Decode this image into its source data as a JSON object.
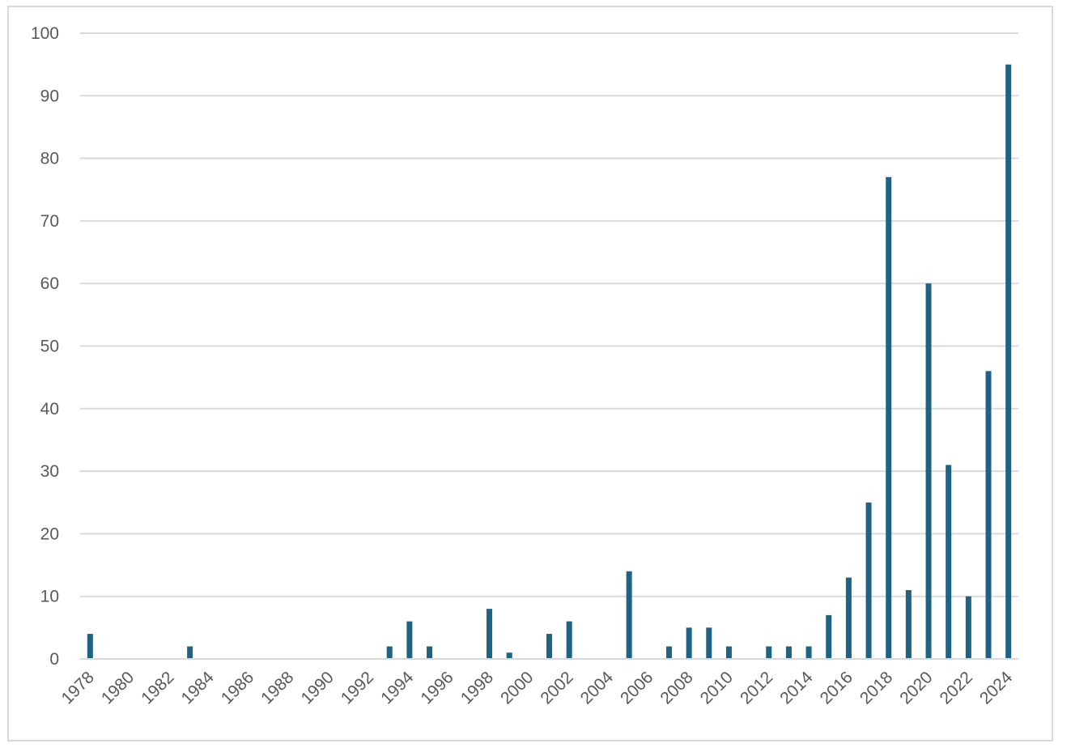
{
  "chart_data": {
    "type": "bar",
    "title": "",
    "xlabel": "",
    "ylabel": "",
    "ylim": [
      0,
      100
    ],
    "yticks": [
      0,
      10,
      20,
      30,
      40,
      50,
      60,
      70,
      80,
      90,
      100
    ],
    "grid": true,
    "legend": "none",
    "categories": [
      "1978",
      "1979",
      "1980",
      "1981",
      "1982",
      "1983",
      "1984",
      "1985",
      "1986",
      "1987",
      "1988",
      "1989",
      "1990",
      "1991",
      "1992",
      "1993",
      "1994",
      "1995",
      "1996",
      "1997",
      "1998",
      "1999",
      "2000",
      "2001",
      "2002",
      "2003",
      "2004",
      "2005",
      "2006",
      "2007",
      "2008",
      "2009",
      "2010",
      "2011",
      "2012",
      "2013",
      "2014",
      "2015",
      "2016",
      "2017",
      "2018",
      "2019",
      "2020",
      "2021",
      "2022",
      "2023",
      "2024"
    ],
    "xtick_labels": [
      "1978",
      "1980",
      "1982",
      "1984",
      "1986",
      "1988",
      "1990",
      "1992",
      "1994",
      "1996",
      "1998",
      "2000",
      "2002",
      "2004",
      "2006",
      "2008",
      "2010",
      "2012",
      "2014",
      "2016",
      "2018",
      "2020",
      "2022",
      "2024"
    ],
    "values": [
      4,
      0,
      0,
      0,
      0,
      2,
      0,
      0,
      0,
      0,
      0,
      0,
      0,
      0,
      0,
      2,
      6,
      2,
      0,
      0,
      8,
      1,
      0,
      4,
      6,
      0,
      0,
      14,
      0,
      2,
      5,
      5,
      2,
      0,
      2,
      2,
      2,
      7,
      13,
      25,
      77,
      11,
      60,
      31,
      10,
      46,
      95
    ],
    "bar_color": "#1f6282",
    "grid_color": "#d9d9d9",
    "tick_color": "#595959"
  }
}
